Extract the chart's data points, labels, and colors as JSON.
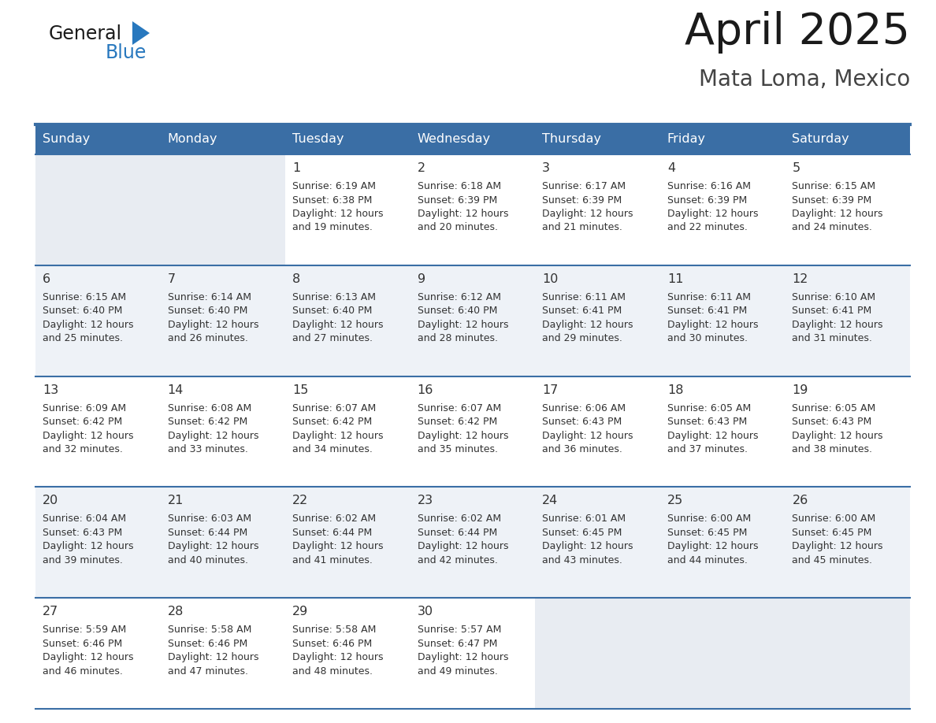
{
  "title": "April 2025",
  "subtitle": "Mata Loma, Mexico",
  "days_of_week": [
    "Sunday",
    "Monday",
    "Tuesday",
    "Wednesday",
    "Thursday",
    "Friday",
    "Saturday"
  ],
  "header_bg_color": "#3a6ea5",
  "header_text_color": "#ffffff",
  "cell_bg_white": "#ffffff",
  "cell_bg_light": "#eef2f7",
  "cell_bg_empty": "#e8ecf2",
  "row_divider_color": "#3a6ea5",
  "text_color": "#333333",
  "title_color": "#1a1a1a",
  "subtitle_color": "#444444",
  "logo_general_color": "#1a1a1a",
  "logo_blue_color": "#2878be",
  "calendar": [
    [
      null,
      null,
      {
        "day": 1,
        "sunrise": "6:19 AM",
        "sunset": "6:38 PM",
        "daylight": "12 hours and 19 minutes."
      },
      {
        "day": 2,
        "sunrise": "6:18 AM",
        "sunset": "6:39 PM",
        "daylight": "12 hours and 20 minutes."
      },
      {
        "day": 3,
        "sunrise": "6:17 AM",
        "sunset": "6:39 PM",
        "daylight": "12 hours and 21 minutes."
      },
      {
        "day": 4,
        "sunrise": "6:16 AM",
        "sunset": "6:39 PM",
        "daylight": "12 hours and 22 minutes."
      },
      {
        "day": 5,
        "sunrise": "6:15 AM",
        "sunset": "6:39 PM",
        "daylight": "12 hours and 24 minutes."
      }
    ],
    [
      {
        "day": 6,
        "sunrise": "6:15 AM",
        "sunset": "6:40 PM",
        "daylight": "12 hours and 25 minutes."
      },
      {
        "day": 7,
        "sunrise": "6:14 AM",
        "sunset": "6:40 PM",
        "daylight": "12 hours and 26 minutes."
      },
      {
        "day": 8,
        "sunrise": "6:13 AM",
        "sunset": "6:40 PM",
        "daylight": "12 hours and 27 minutes."
      },
      {
        "day": 9,
        "sunrise": "6:12 AM",
        "sunset": "6:40 PM",
        "daylight": "12 hours and 28 minutes."
      },
      {
        "day": 10,
        "sunrise": "6:11 AM",
        "sunset": "6:41 PM",
        "daylight": "12 hours and 29 minutes."
      },
      {
        "day": 11,
        "sunrise": "6:11 AM",
        "sunset": "6:41 PM",
        "daylight": "12 hours and 30 minutes."
      },
      {
        "day": 12,
        "sunrise": "6:10 AM",
        "sunset": "6:41 PM",
        "daylight": "12 hours and 31 minutes."
      }
    ],
    [
      {
        "day": 13,
        "sunrise": "6:09 AM",
        "sunset": "6:42 PM",
        "daylight": "12 hours and 32 minutes."
      },
      {
        "day": 14,
        "sunrise": "6:08 AM",
        "sunset": "6:42 PM",
        "daylight": "12 hours and 33 minutes."
      },
      {
        "day": 15,
        "sunrise": "6:07 AM",
        "sunset": "6:42 PM",
        "daylight": "12 hours and 34 minutes."
      },
      {
        "day": 16,
        "sunrise": "6:07 AM",
        "sunset": "6:42 PM",
        "daylight": "12 hours and 35 minutes."
      },
      {
        "day": 17,
        "sunrise": "6:06 AM",
        "sunset": "6:43 PM",
        "daylight": "12 hours and 36 minutes."
      },
      {
        "day": 18,
        "sunrise": "6:05 AM",
        "sunset": "6:43 PM",
        "daylight": "12 hours and 37 minutes."
      },
      {
        "day": 19,
        "sunrise": "6:05 AM",
        "sunset": "6:43 PM",
        "daylight": "12 hours and 38 minutes."
      }
    ],
    [
      {
        "day": 20,
        "sunrise": "6:04 AM",
        "sunset": "6:43 PM",
        "daylight": "12 hours and 39 minutes."
      },
      {
        "day": 21,
        "sunrise": "6:03 AM",
        "sunset": "6:44 PM",
        "daylight": "12 hours and 40 minutes."
      },
      {
        "day": 22,
        "sunrise": "6:02 AM",
        "sunset": "6:44 PM",
        "daylight": "12 hours and 41 minutes."
      },
      {
        "day": 23,
        "sunrise": "6:02 AM",
        "sunset": "6:44 PM",
        "daylight": "12 hours and 42 minutes."
      },
      {
        "day": 24,
        "sunrise": "6:01 AM",
        "sunset": "6:45 PM",
        "daylight": "12 hours and 43 minutes."
      },
      {
        "day": 25,
        "sunrise": "6:00 AM",
        "sunset": "6:45 PM",
        "daylight": "12 hours and 44 minutes."
      },
      {
        "day": 26,
        "sunrise": "6:00 AM",
        "sunset": "6:45 PM",
        "daylight": "12 hours and 45 minutes."
      }
    ],
    [
      {
        "day": 27,
        "sunrise": "5:59 AM",
        "sunset": "6:46 PM",
        "daylight": "12 hours and 46 minutes."
      },
      {
        "day": 28,
        "sunrise": "5:58 AM",
        "sunset": "6:46 PM",
        "daylight": "12 hours and 47 minutes."
      },
      {
        "day": 29,
        "sunrise": "5:58 AM",
        "sunset": "6:46 PM",
        "daylight": "12 hours and 48 minutes."
      },
      {
        "day": 30,
        "sunrise": "5:57 AM",
        "sunset": "6:47 PM",
        "daylight": "12 hours and 49 minutes."
      },
      null,
      null,
      null
    ]
  ]
}
